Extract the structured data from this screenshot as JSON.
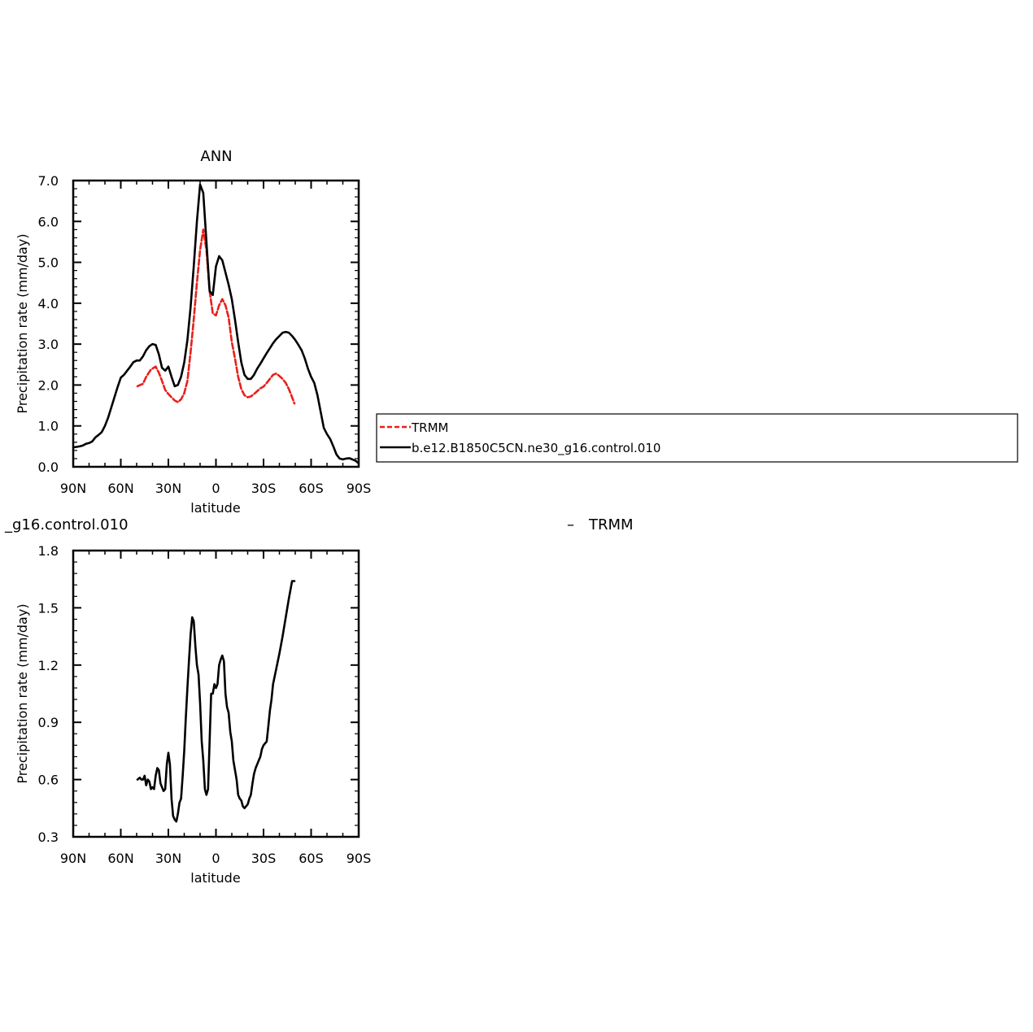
{
  "chart_data": [
    {
      "type": "line",
      "title": "ANN",
      "xlabel": "latitude",
      "ylabel": "Precipitation rate (mm/day)",
      "xlim": [
        90,
        -90
      ],
      "ylim": [
        0,
        7
      ],
      "x_ticks": [
        90,
        60,
        30,
        0,
        -30,
        -60,
        -90
      ],
      "x_tick_labels": [
        "90N",
        "60N",
        "30N",
        "0",
        "30S",
        "60S",
        "90S"
      ],
      "y_ticks": [
        0,
        1,
        2,
        3,
        4,
        5,
        6,
        7
      ],
      "y_tick_labels": [
        "0.0",
        "1.0",
        "2.0",
        "3.0",
        "4.0",
        "5.0",
        "6.0",
        "7.0"
      ],
      "legend_position": "right",
      "series": [
        {
          "name": "TRMM",
          "color": "#e8201c",
          "dash": "dashed",
          "x": [
            49.5,
            46,
            44,
            41,
            38,
            36,
            34,
            32,
            30,
            28,
            26,
            24,
            22,
            20,
            18,
            16,
            14,
            12,
            10,
            8,
            6,
            4,
            2,
            0,
            -2,
            -4,
            -6,
            -8,
            -10,
            -12,
            -14,
            -16,
            -18,
            -20,
            -22,
            -24,
            -26,
            -28,
            -30,
            -32,
            -34,
            -36,
            -38,
            -40,
            -42,
            -44,
            -46,
            -48,
            -49.5
          ],
          "y": [
            1.97,
            2.03,
            2.2,
            2.38,
            2.45,
            2.3,
            2.1,
            1.88,
            1.78,
            1.7,
            1.62,
            1.58,
            1.65,
            1.8,
            2.1,
            2.8,
            3.6,
            4.5,
            5.3,
            5.8,
            5.3,
            4.3,
            3.75,
            3.7,
            3.95,
            4.1,
            3.95,
            3.65,
            3.05,
            2.65,
            2.2,
            1.9,
            1.75,
            1.7,
            1.72,
            1.78,
            1.85,
            1.92,
            1.96,
            2.05,
            2.15,
            2.25,
            2.28,
            2.22,
            2.15,
            2.05,
            1.9,
            1.7,
            1.55
          ]
        },
        {
          "name": "b.e12.B1850C5CN.ne30_g16.control.010",
          "color": "#000000",
          "dash": "solid",
          "x": [
            89,
            86,
            84,
            82,
            80,
            78,
            76,
            74,
            72,
            70,
            68,
            66,
            64,
            62,
            60,
            58,
            56,
            54,
            52,
            50,
            48,
            46,
            44,
            42,
            40,
            38,
            36,
            34,
            32,
            30,
            28,
            26,
            24,
            22,
            20,
            18,
            16,
            14,
            12,
            10,
            8,
            6,
            4,
            2,
            0,
            -2,
            -4,
            -6,
            -8,
            -10,
            -12,
            -14,
            -16,
            -18,
            -20,
            -22,
            -24,
            -26,
            -28,
            -30,
            -32,
            -34,
            -36,
            -38,
            -40,
            -42,
            -44,
            -46,
            -48,
            -50,
            -52,
            -54,
            -56,
            -58,
            -60,
            -62,
            -64,
            -66,
            -68,
            -70,
            -72,
            -74,
            -76,
            -78,
            -80,
            -82,
            -84,
            -86,
            -88,
            -89.5
          ],
          "y": [
            0.48,
            0.5,
            0.52,
            0.56,
            0.58,
            0.62,
            0.72,
            0.78,
            0.85,
            1.0,
            1.2,
            1.45,
            1.7,
            1.95,
            2.18,
            2.25,
            2.35,
            2.45,
            2.56,
            2.6,
            2.6,
            2.7,
            2.85,
            2.95,
            3.0,
            2.98,
            2.75,
            2.42,
            2.35,
            2.45,
            2.2,
            1.97,
            2.0,
            2.2,
            2.55,
            3.1,
            3.9,
            4.9,
            6.0,
            6.9,
            6.7,
            5.5,
            4.3,
            4.2,
            4.9,
            5.15,
            5.05,
            4.75,
            4.45,
            4.1,
            3.6,
            3.05,
            2.55,
            2.25,
            2.15,
            2.15,
            2.25,
            2.4,
            2.52,
            2.65,
            2.78,
            2.9,
            3.02,
            3.12,
            3.2,
            3.28,
            3.3,
            3.28,
            3.2,
            3.1,
            2.98,
            2.85,
            2.65,
            2.4,
            2.2,
            2.05,
            1.75,
            1.35,
            0.95,
            0.8,
            0.68,
            0.5,
            0.3,
            0.2,
            0.18,
            0.2,
            0.21,
            0.18,
            0.15,
            0.1
          ]
        }
      ]
    },
    {
      "type": "line",
      "title": "_g16.control.010",
      "title_right": "TRMM",
      "title_right_prefix": "–",
      "xlabel": "latitude",
      "ylabel": "Precipitation rate (mm/day)",
      "xlim": [
        90,
        -90
      ],
      "ylim": [
        0.3,
        1.8
      ],
      "x_ticks": [
        90,
        60,
        30,
        0,
        -30,
        -60,
        -90
      ],
      "x_tick_labels": [
        "90N",
        "60N",
        "30N",
        "0",
        "30S",
        "60S",
        "90S"
      ],
      "y_ticks": [
        0.3,
        0.6,
        0.9,
        1.2,
        1.5,
        1.8
      ],
      "y_tick_labels": [
        "0.3",
        "0.6",
        "0.9",
        "1.2",
        "1.5",
        "1.8"
      ],
      "series": [
        {
          "color": "#000000",
          "dash": "solid",
          "x": [
            49.5,
            48,
            47,
            46,
            45,
            44,
            43,
            42,
            41,
            40,
            39,
            38,
            37,
            36,
            35,
            34,
            33,
            32,
            31,
            30,
            29,
            28,
            27,
            26,
            25,
            24,
            23,
            22,
            21,
            20,
            19,
            18,
            17,
            16,
            15,
            14,
            13,
            12,
            11,
            10,
            9,
            8,
            7,
            6,
            5,
            4,
            3,
            2,
            1,
            0,
            -1,
            -2,
            -3,
            -4,
            -5,
            -6,
            -7,
            -8,
            -9,
            -10,
            -11,
            -12,
            -13,
            -14,
            -15,
            -16,
            -17,
            -18,
            -19,
            -20,
            -21,
            -22,
            -23,
            -24,
            -25,
            -26,
            -27,
            -28,
            -29,
            -30,
            -31,
            -32,
            -33,
            -34,
            -35,
            -36,
            -38,
            -40,
            -42,
            -44,
            -46,
            -48,
            -49.5
          ],
          "y": [
            0.6,
            0.61,
            0.6,
            0.6,
            0.62,
            0.57,
            0.6,
            0.59,
            0.55,
            0.56,
            0.55,
            0.62,
            0.66,
            0.65,
            0.58,
            0.56,
            0.54,
            0.55,
            0.68,
            0.74,
            0.68,
            0.5,
            0.41,
            0.39,
            0.38,
            0.42,
            0.48,
            0.5,
            0.62,
            0.75,
            0.92,
            1.08,
            1.22,
            1.36,
            1.45,
            1.43,
            1.3,
            1.2,
            1.15,
            1.0,
            0.8,
            0.7,
            0.55,
            0.52,
            0.55,
            0.8,
            1.05,
            1.05,
            1.1,
            1.08,
            1.1,
            1.2,
            1.23,
            1.25,
            1.22,
            1.05,
            0.98,
            0.95,
            0.85,
            0.8,
            0.7,
            0.65,
            0.6,
            0.52,
            0.5,
            0.49,
            0.46,
            0.45,
            0.46,
            0.47,
            0.5,
            0.52,
            0.58,
            0.63,
            0.66,
            0.68,
            0.7,
            0.72,
            0.76,
            0.78,
            0.79,
            0.8,
            0.88,
            0.96,
            1.02,
            1.1,
            1.18,
            1.26,
            1.35,
            1.45,
            1.55,
            1.64,
            1.64
          ]
        }
      ]
    }
  ],
  "legend": {
    "items": [
      {
        "label": "TRMM",
        "color": "#e8201c",
        "dash": "dashed"
      },
      {
        "label": "b.e12.B1850C5CN.ne30_g16.control.010",
        "color": "#000000",
        "dash": "solid"
      }
    ]
  }
}
